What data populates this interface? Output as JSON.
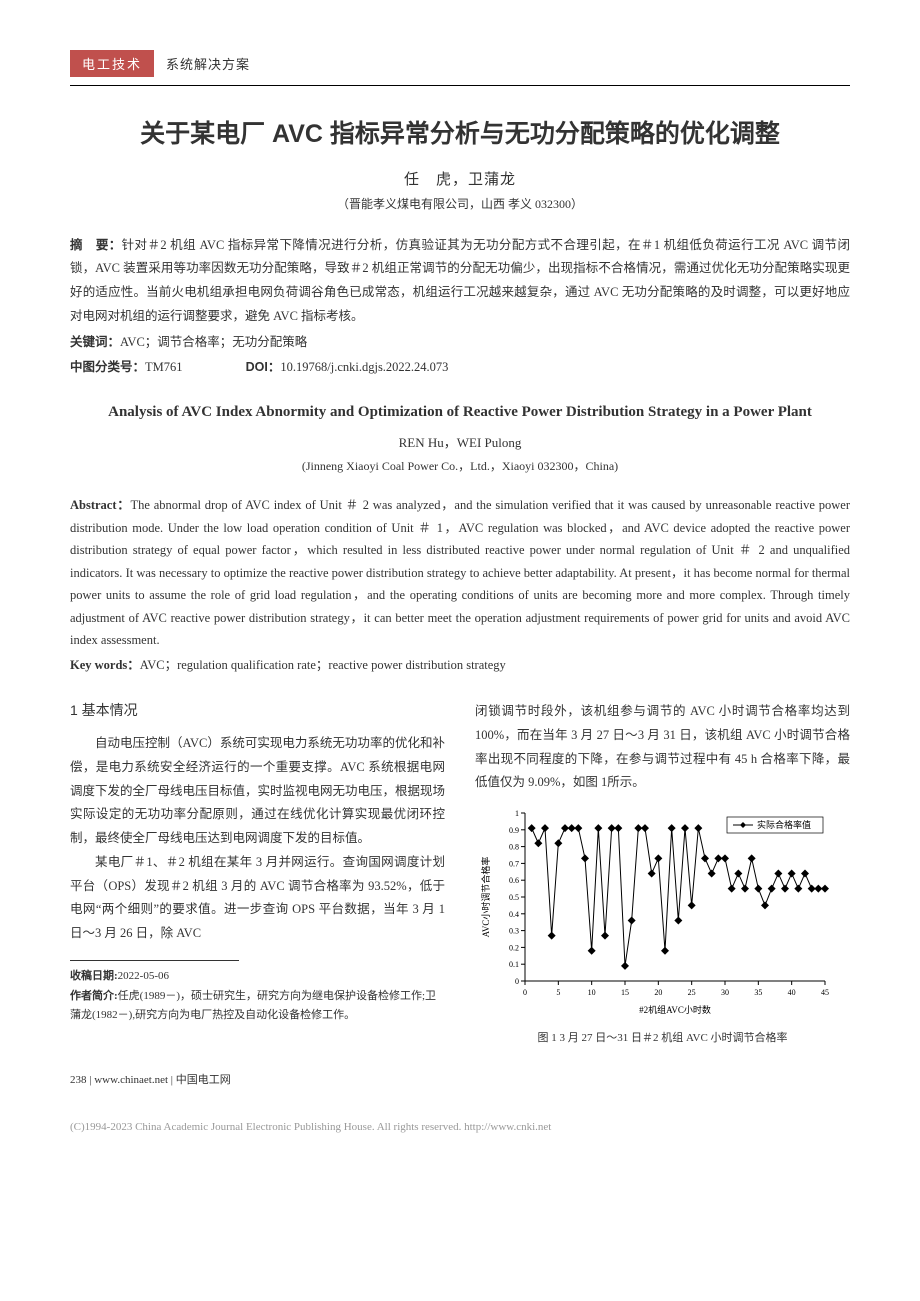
{
  "header": {
    "category": "电工技术",
    "subcategory": "系统解决方案"
  },
  "title_cn": "关于某电厂 AVC 指标异常分析与无功分配策略的优化调整",
  "authors_cn": "任　虎，卫蒲龙",
  "affil_cn": "（晋能孝义煤电有限公司，山西 孝义 032300）",
  "abstract_cn_label": "摘　要：",
  "abstract_cn": "针对＃2 机组 AVC 指标异常下降情况进行分析，仿真验证其为无功分配方式不合理引起，在＃1 机组低负荷运行工况 AVC 调节闭锁，AVC 装置采用等功率因数无功分配策略，导致＃2 机组正常调节的分配无功偏少，出现指标不合格情况，需通过优化无功分配策略实现更好的适应性。当前火电机组承担电网负荷调谷角色已成常态，机组运行工况越来越复杂，通过 AVC 无功分配策略的及时调整，可以更好地应对电网对机组的运行调整要求，避免 AVC 指标考核。",
  "keywords_cn_label": "关键词：",
  "keywords_cn": "AVC；调节合格率；无功分配策略",
  "classnum_label": "中图分类号：",
  "classnum": "TM761",
  "doi_label": "DOI：",
  "doi": "10.19768/j.cnki.dgjs.2022.24.073",
  "title_en": "Analysis of AVC Index Abnormity and Optimization of Reactive Power Distribution Strategy in a Power Plant",
  "authors_en": "REN Hu，WEI Pulong",
  "affil_en": "(Jinneng Xiaoyi Coal Power Co.，Ltd.，Xiaoyi 032300，China)",
  "abstract_en_label": "Abstract：",
  "abstract_en": "The abnormal drop of AVC index of Unit ＃ 2 was analyzed，and the simulation verified that it was caused by unreasonable reactive power distribution mode. Under the low load operation condition of Unit ＃ 1，AVC regulation was blocked，and AVC device adopted the reactive power distribution strategy of equal power factor，which resulted in less distributed reactive power under normal regulation of Unit ＃ 2 and unqualified indicators. It was necessary to optimize the reactive power distribution strategy to achieve better adaptability. At present，it has become normal for thermal power units to assume the role of grid load regulation，and the operating conditions of units are becoming more and more complex. Through timely adjustment of AVC reactive power distribution strategy，it can better meet the operation adjustment requirements of power grid for units and avoid AVC index assessment.",
  "keywords_en_label": "Key words：",
  "keywords_en": "AVC；regulation qualification rate；reactive power distribution strategy",
  "section1": {
    "head": "1 基本情况",
    "p1": "自动电压控制（AVC）系统可实现电力系统无功功率的优化和补偿，是电力系统安全经济运行的一个重要支撑。AVC 系统根据电网调度下发的全厂母线电压目标值，实时监视电网无功电压，根据现场实际设定的无功功率分配原则，通过在线优化计算实现最优闭环控制，最终使全厂母线电压达到电网调度下发的目标值。",
    "p2": "某电厂＃1、＃2 机组在某年 3 月并网运行。查询国网调度计划平台（OPS）发现＃2 机组 3 月的 AVC 调节合格率为 93.52%，低于电网“两个细则”的要求值。进一步查询 OPS 平台数据，当年 3 月 1 日～3 月 26 日，除 AVC",
    "p3_right": "闭锁调节时段外，该机组参与调节的 AVC 小时调节合格率均达到 100%，而在当年 3 月 27 日～3 月 31 日，该机组 AVC 小时调节合格率出现不同程度的下降，在参与调节过程中有 45 h 合格率下降，最低值仅为 9.09%，如图 1所示。"
  },
  "footnote": {
    "date_label": "收稿日期:",
    "date": "2022-05-06",
    "bio_label": "作者简介:",
    "bio": "任虎(1989－)，硕士研究生，研究方向为继电保护设备检修工作;卫蒲龙(1982－),研究方向为电厂热控及自动化设备检修工作。"
  },
  "chart": {
    "type": "line",
    "title": "图 1 3 月 27 日～31 日＃2 机组 AVC 小时调节合格率",
    "legend": "实际合格率值",
    "xlabel": "#2机组AVC小时数",
    "ylabel": "AVC小时调节合格率",
    "xlim": [
      0,
      45
    ],
    "ylim": [
      0,
      1
    ],
    "xticks": [
      0,
      5,
      10,
      15,
      20,
      25,
      30,
      35,
      40,
      45
    ],
    "yticks": [
      0,
      0.1,
      0.2,
      0.3,
      0.4,
      0.5,
      0.6,
      0.7,
      0.8,
      0.9,
      1
    ],
    "line_color": "#000000",
    "marker": "diamond",
    "marker_size": 4,
    "background_color": "#ffffff",
    "axis_color": "#000000",
    "tick_fontsize": 8,
    "label_fontsize": 9,
    "x": [
      1,
      2,
      3,
      4,
      5,
      6,
      7,
      8,
      9,
      10,
      11,
      12,
      13,
      14,
      15,
      16,
      17,
      18,
      19,
      20,
      21,
      22,
      23,
      24,
      25,
      26,
      27,
      28,
      29,
      30,
      31,
      32,
      33,
      34,
      35,
      36,
      37,
      38,
      39,
      40,
      41,
      42,
      43,
      44,
      45
    ],
    "y": [
      0.91,
      0.82,
      0.91,
      0.27,
      0.82,
      0.91,
      0.91,
      0.91,
      0.73,
      0.18,
      0.91,
      0.27,
      0.91,
      0.91,
      0.09,
      0.36,
      0.91,
      0.91,
      0.64,
      0.73,
      0.18,
      0.91,
      0.36,
      0.91,
      0.45,
      0.91,
      0.73,
      0.64,
      0.73,
      0.73,
      0.55,
      0.64,
      0.55,
      0.73,
      0.55,
      0.45,
      0.55,
      0.64,
      0.55,
      0.64,
      0.55,
      0.64,
      0.55,
      0.55,
      0.55
    ]
  },
  "footer": {
    "pagenum": "238",
    "site": "www.chinaet.net",
    "brand": "中国电工网",
    "copyright": "(C)1994-2023 China Academic Journal Electronic Publishing House. All rights reserved.    http://www.cnki.net"
  }
}
